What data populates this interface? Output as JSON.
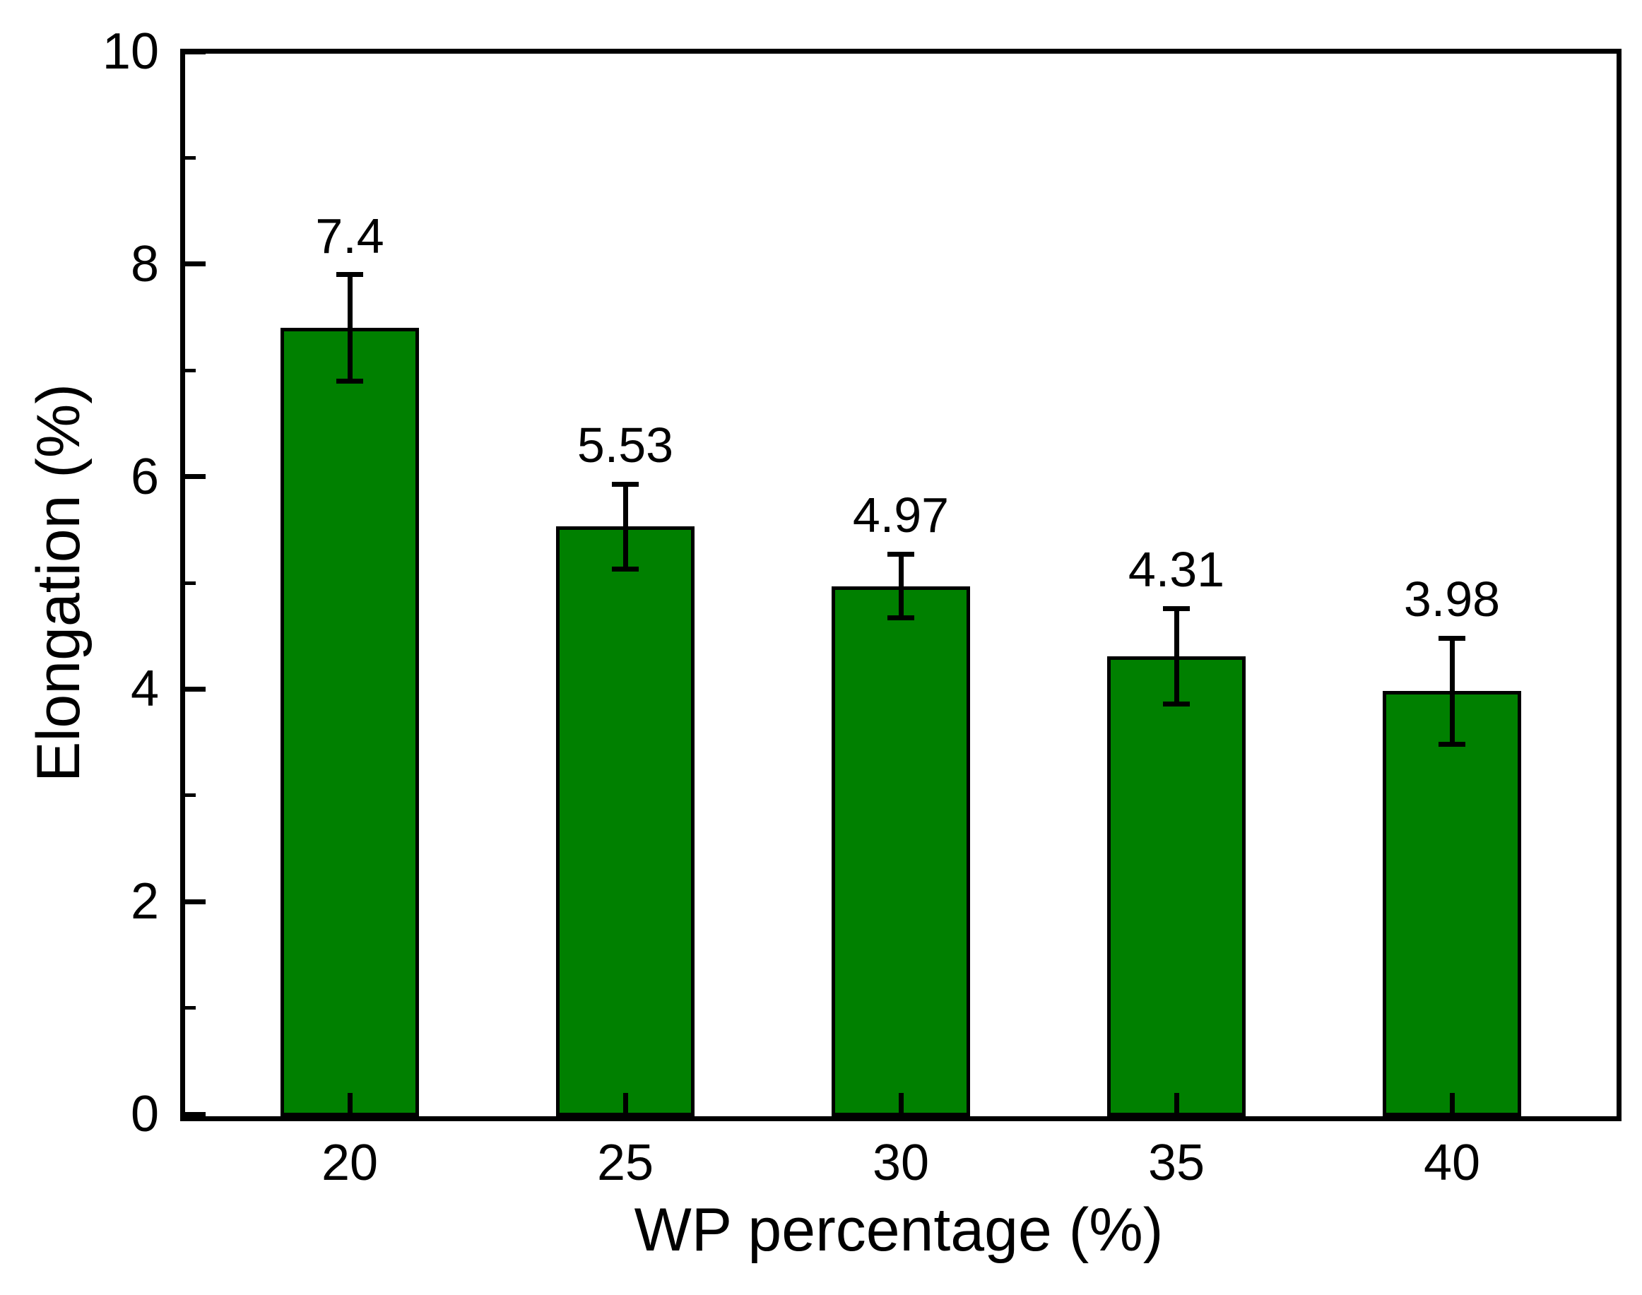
{
  "chart_data": {
    "type": "bar",
    "categories": [
      "20",
      "25",
      "30",
      "35",
      "40"
    ],
    "values": [
      7.4,
      5.53,
      4.97,
      4.31,
      3.98
    ],
    "errors": [
      0.5,
      0.4,
      0.3,
      0.45,
      0.5
    ],
    "value_labels": [
      "7.4",
      "5.53",
      "4.97",
      "4.31",
      "3.98"
    ],
    "title": "",
    "xlabel": "WP percentage (%)",
    "ylabel": "Elongation (%)",
    "ylim": [
      0,
      10
    ],
    "ytick_major_values": [
      0,
      2,
      4,
      6,
      8,
      10
    ],
    "ytick_major_labels": [
      "0",
      "2",
      "4",
      "6",
      "8",
      "10"
    ],
    "ytick_minor_values": [
      1,
      3,
      5,
      7,
      9
    ],
    "grid": false,
    "legend_position": "none",
    "bar_fill_color": "#008000",
    "bar_border_color": "#000000",
    "error_bar_color": "#000000",
    "axis_color": "#000000",
    "text_color": "#000000",
    "background_color": "#ffffff"
  }
}
